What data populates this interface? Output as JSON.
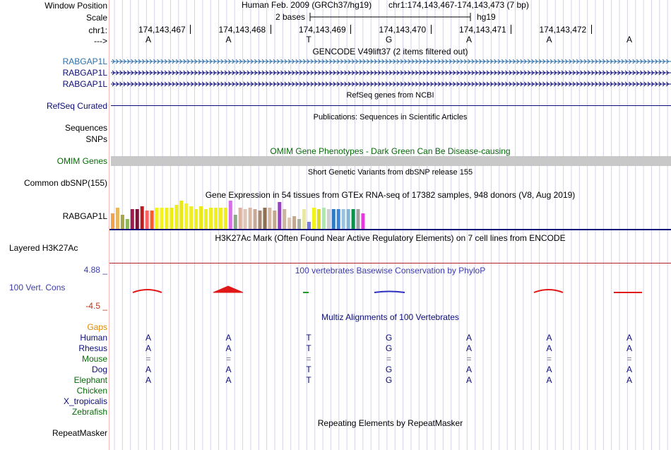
{
  "colors": {
    "gencode_blue": "#2c6fa8",
    "navy": "#0c0c78",
    "omim_green": "#0a6a0a",
    "gaps_orange": "#e08a00",
    "h3k27ac_red": "#b0232e",
    "phylop_blue": "#3c3caa",
    "phylop_neg": "#b23b1b",
    "grid_line": "#d4d4ec",
    "divider": "#f4b8b8"
  },
  "header": {
    "window_position_label": "Window Position",
    "scale_label": "Scale",
    "chrom_label": "chr1:",
    "arrow_label": "--->",
    "assembly": "Human Feb. 2009 (GRCh37/hg19)",
    "position": "chr1:174,143,467-174,143,473 (7 bp)",
    "scale_text": "2 bases",
    "scale_assembly": "hg19",
    "coords": [
      "174,143,467",
      "174,143,468",
      "174,143,469",
      "174,143,470",
      "174,143,471",
      "174,143,472"
    ],
    "sequence": [
      "A",
      "A",
      "T",
      "G",
      "A",
      "A",
      "A"
    ]
  },
  "tracks": {
    "gencode": {
      "title": "GENCODE V49lift37 (2 items filtered out)",
      "items": [
        "RABGAP1L",
        "RABGAP1L",
        "RABGAP1L"
      ]
    },
    "refseq": {
      "title": "RefSeq genes from NCBI",
      "label": "RefSeq Curated"
    },
    "publications": {
      "title": "Publications: Sequences in Scientific Articles",
      "labels": [
        "Sequences",
        "SNPs"
      ]
    },
    "omim": {
      "title": "OMIM Gene Phenotypes - Dark Green Can Be Disease-causing",
      "label": "OMIM Genes"
    },
    "dbsnp": {
      "title": "Short Genetic Variants from dbSNP release 155",
      "label": "Common dbSNP(155)"
    },
    "gtex": {
      "title": "Gene Expression in 54 tissues from GTEx RNA-seq of 17382 samples, 948 donors (V8, Aug 2019)",
      "label": "RABGAP1L",
      "bars": [
        {
          "v": 0.55,
          "c": "#f3a14a"
        },
        {
          "v": 0.75,
          "c": "#e8b85c"
        },
        {
          "v": 0.5,
          "c": "#a6a64a"
        },
        {
          "v": 0.35,
          "c": "#8cb85a"
        },
        {
          "v": 0.7,
          "c": "#a01c4c"
        },
        {
          "v": 0.7,
          "c": "#7a1436"
        },
        {
          "v": 0.8,
          "c": "#bb1e1e"
        },
        {
          "v": 0.65,
          "c": "#ff6060"
        },
        {
          "v": 0.65,
          "c": "#ff5a2a"
        },
        {
          "v": 0.75,
          "c": "#f4f41a"
        },
        {
          "v": 0.75,
          "c": "#f4f41a"
        },
        {
          "v": 0.75,
          "c": "#f0f01e"
        },
        {
          "v": 0.75,
          "c": "#eded12"
        },
        {
          "v": 0.85,
          "c": "#eeee22"
        },
        {
          "v": 1.0,
          "c": "#e9e91a"
        },
        {
          "v": 0.9,
          "c": "#f2f228"
        },
        {
          "v": 0.8,
          "c": "#eeee20"
        },
        {
          "v": 0.7,
          "c": "#eeee22"
        },
        {
          "v": 0.8,
          "c": "#eaea18"
        },
        {
          "v": 0.7,
          "c": "#eeee22"
        },
        {
          "v": 0.75,
          "c": "#eeee22"
        },
        {
          "v": 0.75,
          "c": "#f0f01c"
        },
        {
          "v": 0.75,
          "c": "#eeee20"
        },
        {
          "v": 0.75,
          "c": "#eeee22"
        },
        {
          "v": 1.0,
          "c": "#d46fe8"
        },
        {
          "v": 0.5,
          "c": "#8aaa8a"
        },
        {
          "v": 0.75,
          "c": "#dcb4a4"
        },
        {
          "v": 0.7,
          "c": "#e2c4b6"
        },
        {
          "v": 0.75,
          "c": "#d4b8a8"
        },
        {
          "v": 0.7,
          "c": "#c8a898"
        },
        {
          "v": 0.65,
          "c": "#a88870"
        },
        {
          "v": 0.75,
          "c": "#8e7052"
        },
        {
          "v": 0.75,
          "c": "#d6b8a2"
        },
        {
          "v": 0.65,
          "c": "#c4a88e"
        },
        {
          "v": 0.95,
          "c": "#9a40c4"
        },
        {
          "v": 0.7,
          "c": "#cab6a0"
        },
        {
          "v": 0.4,
          "c": "#dcc4ae"
        },
        {
          "v": 0.45,
          "c": "#c2a890"
        },
        {
          "v": 0.35,
          "c": "#a8b0a0"
        },
        {
          "v": 0.7,
          "c": "#e8e8a4"
        },
        {
          "v": 0.25,
          "c": "#7a7ae6"
        },
        {
          "v": 0.75,
          "c": "#f2f21c"
        },
        {
          "v": 0.7,
          "c": "#dddd22"
        },
        {
          "v": 0.75,
          "c": "#b0e4b0"
        },
        {
          "v": 0.7,
          "c": "#cfcfcf"
        },
        {
          "v": 0.7,
          "c": "#2c7ac4"
        },
        {
          "v": 0.7,
          "c": "#3a84d2"
        },
        {
          "v": 0.7,
          "c": "#99c3e0"
        },
        {
          "v": 0.7,
          "c": "#82b5d4"
        },
        {
          "v": 0.7,
          "c": "#089448"
        },
        {
          "v": 0.7,
          "c": "#a0a0a0"
        },
        {
          "v": 0.55,
          "c": "#ea38e0"
        }
      ]
    },
    "h3k27ac": {
      "title": "H3K27Ac Mark (Often Found Near Active Regulatory Elements) on 7 cell lines from ENCODE",
      "label": "Layered H3K27Ac"
    },
    "phylop": {
      "title": "100 vertebrates Basewise Conservation by PhyloP",
      "label": "100 Vert. Cons",
      "max_label": "4.88 _",
      "min_label": "-4.5 _"
    },
    "multiz": {
      "title": "Multiz Alignments of 100 Vertebrates",
      "species": [
        {
          "name": "Gaps",
          "color": "#e08a00",
          "seq": []
        },
        {
          "name": "Human",
          "color": "#0c0c78",
          "seq": [
            "A",
            "A",
            "T",
            "G",
            "A",
            "A",
            "A"
          ]
        },
        {
          "name": "Rhesus",
          "color": "#0c0c78",
          "seq": [
            "A",
            "A",
            "T",
            "G",
            "A",
            "A",
            "A"
          ]
        },
        {
          "name": "Mouse",
          "color": "#0a6a0a",
          "seq": [
            "=",
            "=",
            "=",
            "=",
            "=",
            "=",
            "="
          ]
        },
        {
          "name": "Dog",
          "color": "#0c0c78",
          "seq": [
            "A",
            "A",
            "T",
            "G",
            "A",
            "A",
            "A"
          ]
        },
        {
          "name": "Elephant",
          "color": "#0a6a0a",
          "seq": [
            "A",
            "A",
            "T",
            "G",
            "A",
            "A",
            "A"
          ]
        },
        {
          "name": "Chicken",
          "color": "#0a6a0a",
          "seq": []
        },
        {
          "name": "X_tropicalis",
          "color": "#0c0c78",
          "seq": []
        },
        {
          "name": "Zebrafish",
          "color": "#0a6a0a",
          "seq": []
        }
      ]
    },
    "repeatmasker": {
      "title": "Repeating Elements by RepeatMasker",
      "label": "RepeatMasker"
    }
  }
}
